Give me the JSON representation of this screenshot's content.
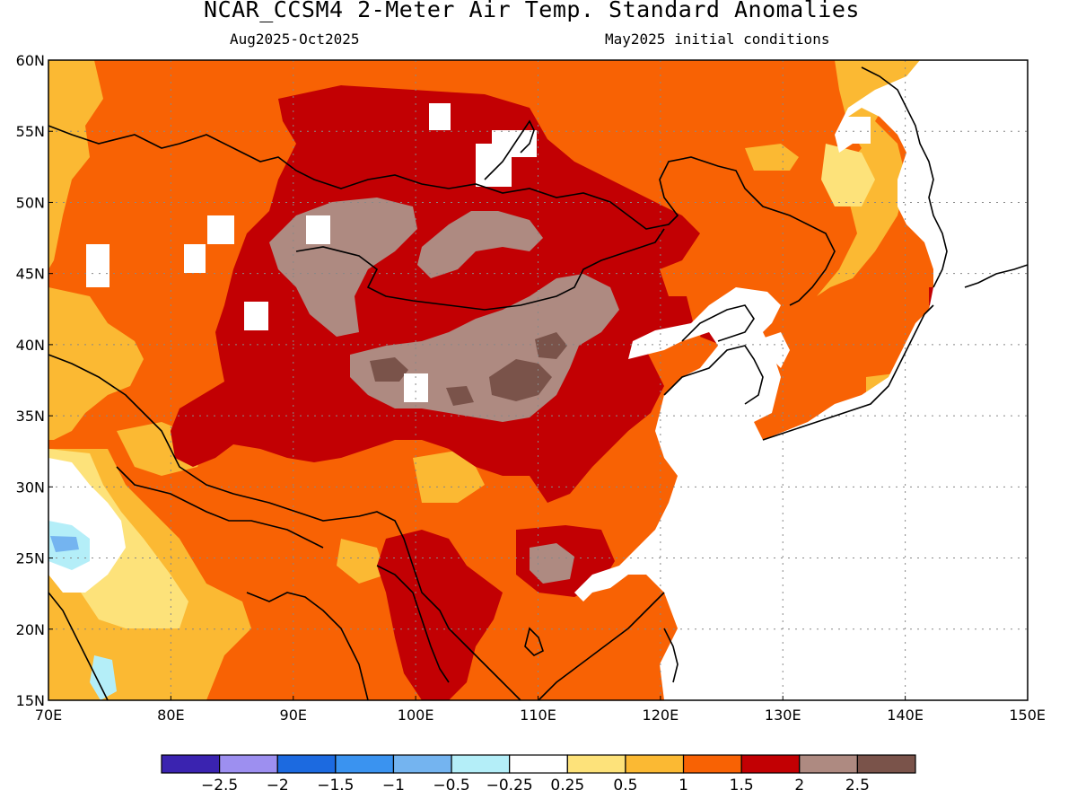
{
  "header": {
    "title": "NCAR_CCSM4 2-Meter Air Temp. Standard Anomalies",
    "period": "Aug2025-Oct2025",
    "init": "May2025 initial conditions"
  },
  "axes": {
    "lat_labels": [
      "15N",
      "20N",
      "25N",
      "30N",
      "35N",
      "40N",
      "45N",
      "50N",
      "55N",
      "60N"
    ],
    "lat_values": [
      15,
      20,
      25,
      30,
      35,
      40,
      45,
      50,
      55,
      60
    ],
    "lon_labels": [
      "70E",
      "80E",
      "90E",
      "100E",
      "110E",
      "120E",
      "130E",
      "140E",
      "150E"
    ],
    "lon_values": [
      70,
      80,
      90,
      100,
      110,
      120,
      130,
      140,
      150
    ]
  },
  "colorbar": {
    "colors": [
      "#3a23b0",
      "#9d8ff0",
      "#1c6ae0",
      "#3a93f0",
      "#74b4f0",
      "#b4eef8",
      "#ffffff",
      "#fde27a",
      "#fbb933",
      "#f86204",
      "#c20003",
      "#ae8a81",
      "#7a534a"
    ],
    "labels": [
      "-2.5",
      "-2",
      "-1.5",
      "-1",
      "-0.5",
      "-0.25",
      "0.25",
      "0.5",
      "1",
      "1.5",
      "2",
      "2.5"
    ]
  },
  "map": {
    "background_color": "#f86204",
    "region_colors": {
      "anom_2_0": "#c20003",
      "anom_2_5": "#ae8a81",
      "anom_3_0": "#7a534a",
      "anom_1_0": "#fbb933",
      "anom_0_5": "#fde27a",
      "anom_neg": "#b4eef8",
      "anom_neg2": "#74b4f0",
      "ocean": "#ffffff"
    }
  }
}
